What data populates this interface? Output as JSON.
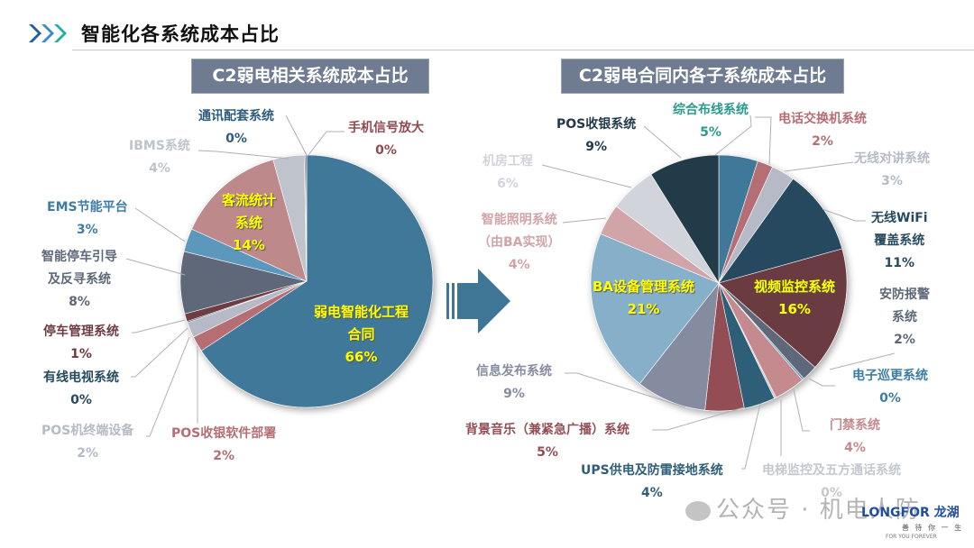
{
  "header": {
    "title": "智能化各系统成本占比",
    "chevron_colors": [
      "#1F5FA0",
      "#3B8AD0",
      "#20B0A8"
    ]
  },
  "left_chart_title": "C2弱电相关系统成本占比",
  "right_chart_title": "C2弱电合同内各子系统成本占比",
  "arrow_color": "#3F7696",
  "watermark": {
    "text": "公众号 · 机电人防",
    "icon": "wechat-icon"
  },
  "logo": {
    "brand": "LONGFOR",
    "brand_cn": "龙湖",
    "slogan_cn": "善 待 你 一 生",
    "slogan_en": "FOR YOU FOREVER"
  },
  "chart_data": [
    {
      "type": "pie",
      "title": "C2弱电相关系统成本占比",
      "categories": [
        "弱电智能化工程合同",
        "POS收银软件部署",
        "POS机终端设备",
        "有线电视系统",
        "停车管理系统",
        "智能停车引导及反寻系统",
        "EMS节能平台",
        "客流统计系统",
        "IBMS系统",
        "通讯配套系统",
        "手机信号放大"
      ],
      "values": [
        66,
        2,
        2,
        0,
        1,
        8,
        3,
        14,
        4,
        0,
        0
      ],
      "colors": [
        "#41789A",
        "#B56E73",
        "#B5BAC6",
        "#264A5E",
        "#6D3C42",
        "#5E6879",
        "#5B98BB",
        "#BD898B",
        "#BFC3CB",
        "#3F6A86",
        "#8E4B52"
      ],
      "labels": [
        {
          "name": "弱电智能化工程",
          "name2": "合同",
          "pct": "66%"
        },
        {
          "name": "POS收银软件部署",
          "pct": "2%"
        },
        {
          "name": "POS机终端设备",
          "pct": "2%"
        },
        {
          "name": "有线电视系统",
          "pct": "0%"
        },
        {
          "name": "停车管理系统",
          "pct": "1%"
        },
        {
          "name": "智能停车引导",
          "name2": "及反寻系统",
          "pct": "8%"
        },
        {
          "name": "EMS节能平台",
          "pct": "3%"
        },
        {
          "name": "客流统计",
          "name2": "系统",
          "pct": "14%"
        },
        {
          "name": "IBMS系统",
          "pct": "4%"
        },
        {
          "name": "通讯配套系统",
          "pct": "0%"
        },
        {
          "name": "手机信号放大",
          "pct": "0%"
        }
      ]
    },
    {
      "type": "pie",
      "title": "C2弱电合同内各子系统成本占比",
      "categories": [
        "综合布线系统",
        "电话交换机系统",
        "无线对讲系统",
        "无线WiFi覆盖系统",
        "视频监控系统",
        "安防报警系统",
        "电子巡更系统",
        "门禁系统",
        "电梯监控及五方通话系统",
        "UPS供电及防雷接地系统",
        "背景音乐（兼紧急广播）系统",
        "信息发布系统",
        "BA设备管理系统",
        "智能照明系统（由BA实现）",
        "机房工程",
        "POS收银系统"
      ],
      "values": [
        5,
        2,
        3,
        11,
        16,
        2,
        0,
        4,
        0,
        4,
        5,
        9,
        21,
        4,
        6,
        9
      ],
      "colors": [
        "#41789A",
        "#B56E73",
        "#B5BAC6",
        "#264A5E",
        "#6B3A41",
        "#5E6879",
        "#5B98BB",
        "#C48A8E",
        "#C4C8CF",
        "#2F5E78",
        "#924E55",
        "#868CA0",
        "#86B0CA",
        "#D1A4A8",
        "#D1D4DB",
        "#233A4A"
      ],
      "labels": [
        {
          "name": "综合布线系统",
          "pct": "5%"
        },
        {
          "name": "电话交换机系统",
          "pct": "2%"
        },
        {
          "name": "无线对讲系统",
          "pct": "3%"
        },
        {
          "name": "无线WiFi",
          "name2": "覆盖系统",
          "pct": "11%"
        },
        {
          "name": "视频监控系统",
          "pct": "16%"
        },
        {
          "name": "安防报警",
          "name2": "系统",
          "pct": "2%"
        },
        {
          "name": "电子巡更系统",
          "pct": "0%"
        },
        {
          "name": "门禁系统",
          "pct": "4%"
        },
        {
          "name": "电梯监控及五方通话系统",
          "pct": "0%"
        },
        {
          "name": "UPS供电及防雷接地系统",
          "pct": "4%"
        },
        {
          "name": "背景音乐（兼紧急广播）系统",
          "pct": "5%"
        },
        {
          "name": "信息发布系统",
          "pct": "9%"
        },
        {
          "name": "BA设备管理系统",
          "pct": "21%"
        },
        {
          "name": "智能照明系统",
          "name2": "（由BA实现）",
          "pct": "4%"
        },
        {
          "name": "机房工程",
          "pct": "6%"
        },
        {
          "name": "POS收银系统",
          "pct": "9%"
        }
      ]
    }
  ]
}
